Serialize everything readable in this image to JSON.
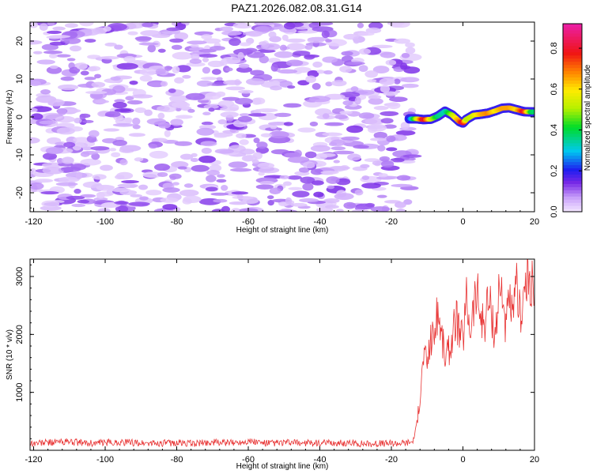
{
  "title": "PAZ1.2026.082.08.31.G14",
  "chart_data": [
    {
      "type": "heatmap",
      "xlabel": "Height of straight line (km)",
      "ylabel": "Frequency (Hz)",
      "xlim": [
        -121,
        20
      ],
      "ylim": [
        -25,
        25
      ],
      "xticks": [
        -120,
        -100,
        -80,
        -60,
        -40,
        -20,
        0,
        20
      ],
      "yticks": [
        -20,
        -10,
        0,
        10,
        20
      ],
      "colorbar": {
        "label": "Normalized spectral amplitude",
        "range": [
          0.0,
          0.92
        ],
        "ticks": [
          0.0,
          0.2,
          0.4,
          0.6,
          0.8
        ]
      },
      "noise_region_x": [
        -121,
        -14
      ],
      "noise_amplitude_range": [
        0.02,
        0.15
      ],
      "signal_track": {
        "x": [
          -15,
          -13,
          -11,
          -9,
          -7,
          -5,
          -3,
          -1,
          0,
          1,
          3,
          5,
          7,
          9,
          11,
          13,
          15,
          17,
          19,
          20
        ],
        "frequency": [
          -0.5,
          -0.5,
          -0.7,
          -0.6,
          0.2,
          1.5,
          0.5,
          -1.2,
          -1.6,
          -0.6,
          0.5,
          0.7,
          1.0,
          1.6,
          2.3,
          2.4,
          1.9,
          1.4,
          1.3,
          1.3
        ],
        "amplitude": [
          0.22,
          0.55,
          0.9,
          0.6,
          0.4,
          0.35,
          0.55,
          0.75,
          0.9,
          0.55,
          0.6,
          0.7,
          0.75,
          0.65,
          0.72,
          0.72,
          0.66,
          0.88,
          0.45,
          0.4
        ]
      }
    },
    {
      "type": "line",
      "xlabel": "Height of straight line (km)",
      "ylabel": "SNR (10 * v/v)",
      "xlim": [
        -121,
        20
      ],
      "ylim": [
        0,
        3300
      ],
      "xticks": [
        -120,
        -100,
        -80,
        -60,
        -40,
        -20,
        0,
        20
      ],
      "yticks": [
        1000,
        2000,
        3000
      ],
      "color": "#e83232",
      "series": [
        {
          "name": "SNR",
          "x": [
            -121,
            -115,
            -110,
            -105,
            -100,
            -95,
            -90,
            -85,
            -80,
            -75,
            -70,
            -65,
            -60,
            -55,
            -50,
            -45,
            -40,
            -35,
            -30,
            -25,
            -20,
            -16,
            -14,
            -13,
            -12,
            -11,
            -10,
            -9,
            -8,
            -7,
            -6,
            -5,
            -4,
            -3,
            -2,
            -1,
            0,
            1,
            2,
            3,
            4,
            5,
            6,
            7,
            8,
            9,
            10,
            11,
            12,
            13,
            14,
            15,
            16,
            17,
            18,
            19,
            20
          ],
          "y": [
            120,
            140,
            150,
            120,
            130,
            140,
            125,
            120,
            130,
            115,
            140,
            125,
            160,
            120,
            130,
            130,
            120,
            125,
            120,
            115,
            120,
            130,
            150,
            400,
            900,
            1650,
            1500,
            1900,
            2000,
            2400,
            2000,
            1600,
            1700,
            1900,
            2300,
            2000,
            1900,
            2600,
            2100,
            2500,
            2700,
            2300,
            2200,
            2600,
            2400,
            2000,
            2700,
            2800,
            2100,
            2600,
            2200,
            2800,
            2400,
            2700,
            2900,
            3000,
            2500
          ]
        }
      ]
    }
  ]
}
